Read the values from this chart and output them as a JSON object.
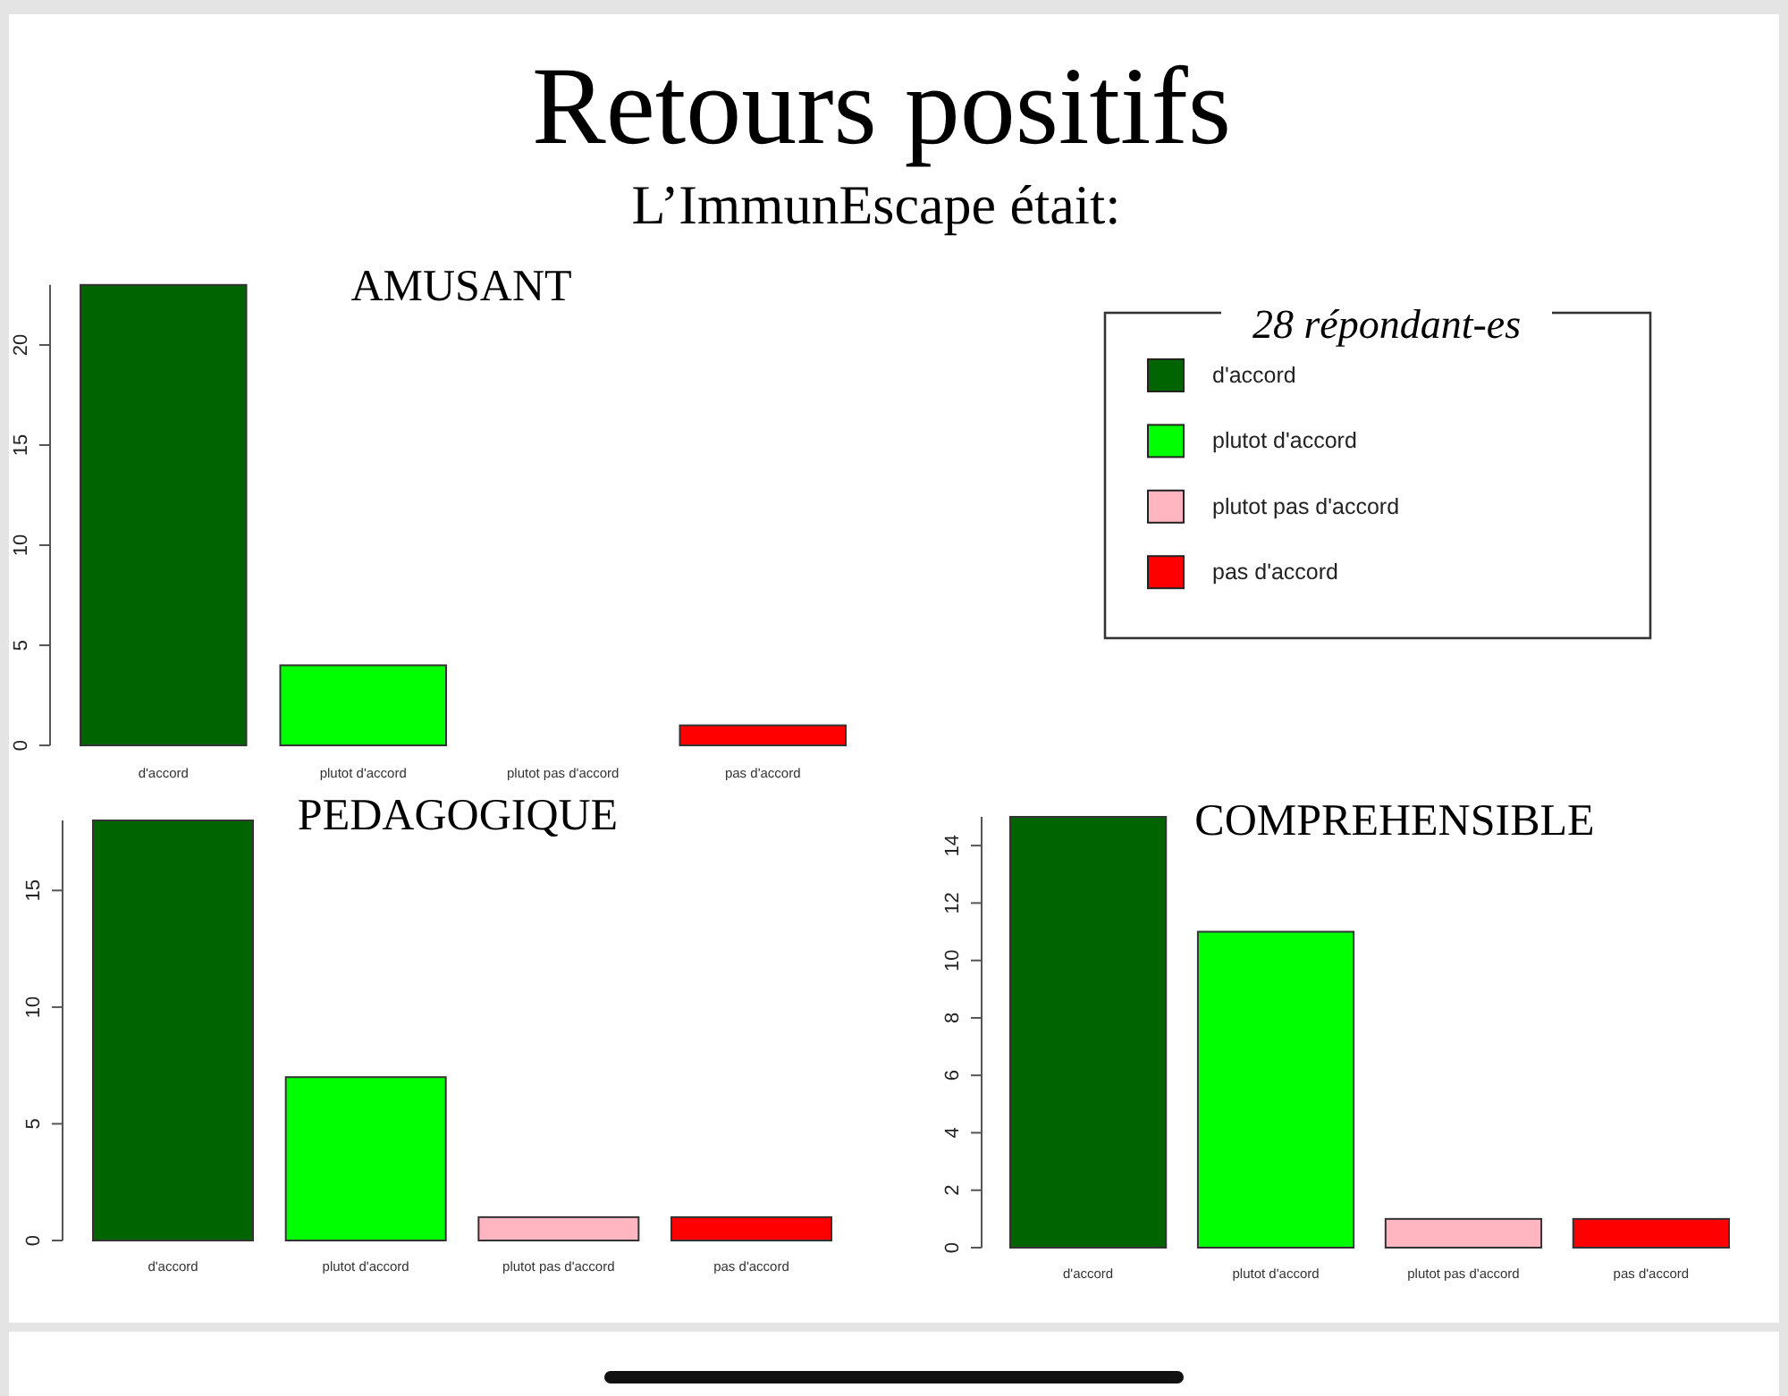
{
  "chart_data": [
    {
      "type": "other",
      "title": "Retours positifs",
      "subtitle": "L’ImmunEscape était:"
    },
    {
      "type": "bar",
      "title": "AMUSANT",
      "categories": [
        "d'accord",
        "plutot d'accord",
        "plutot pas d'accord",
        "pas d'accord"
      ],
      "stacked": true,
      "series": [
        {
          "name": "d'accord",
          "color": "#006400",
          "values": [
            23,
            null,
            null,
            null
          ]
        },
        {
          "name": "plutot d'accord",
          "color": "#00ff00",
          "values": [
            null,
            4,
            null,
            null
          ]
        },
        {
          "name": "plutot pas d'accord",
          "color": "#ffb6c1",
          "values": [
            null,
            null,
            0,
            null
          ]
        },
        {
          "name": "pas d'accord",
          "color": "#ff0000",
          "values": [
            null,
            null,
            null,
            1
          ]
        }
      ],
      "ylim": [
        0,
        23
      ],
      "yticks": [
        0,
        5,
        10,
        15,
        20
      ],
      "legend": "right",
      "legend_title": "28 répondant-es"
    },
    {
      "type": "bar",
      "title": "PEDAGOGIQUE",
      "categories": [
        "d'accord",
        "plutot d'accord",
        "plutot pas d'accord",
        "pas d'accord"
      ],
      "values": [
        18,
        7,
        1,
        1
      ],
      "colors": [
        "#006400",
        "#00ff00",
        "#ffb6c1",
        "#ff0000"
      ],
      "ylim": [
        0,
        18
      ],
      "yticks": [
        0,
        5,
        10,
        15
      ]
    },
    {
      "type": "bar",
      "title": "COMPREHENSIBLE",
      "categories": [
        "d'accord",
        "plutot d'accord",
        "plutot pas d'accord",
        "pas d'accord"
      ],
      "values": [
        15,
        11,
        1,
        1
      ],
      "colors": [
        "#006400",
        "#00ff00",
        "#ffb6c1",
        "#ff0000"
      ],
      "ylim": [
        0,
        15
      ],
      "yticks": [
        0,
        2,
        4,
        6,
        8,
        10,
        12,
        14
      ]
    }
  ]
}
